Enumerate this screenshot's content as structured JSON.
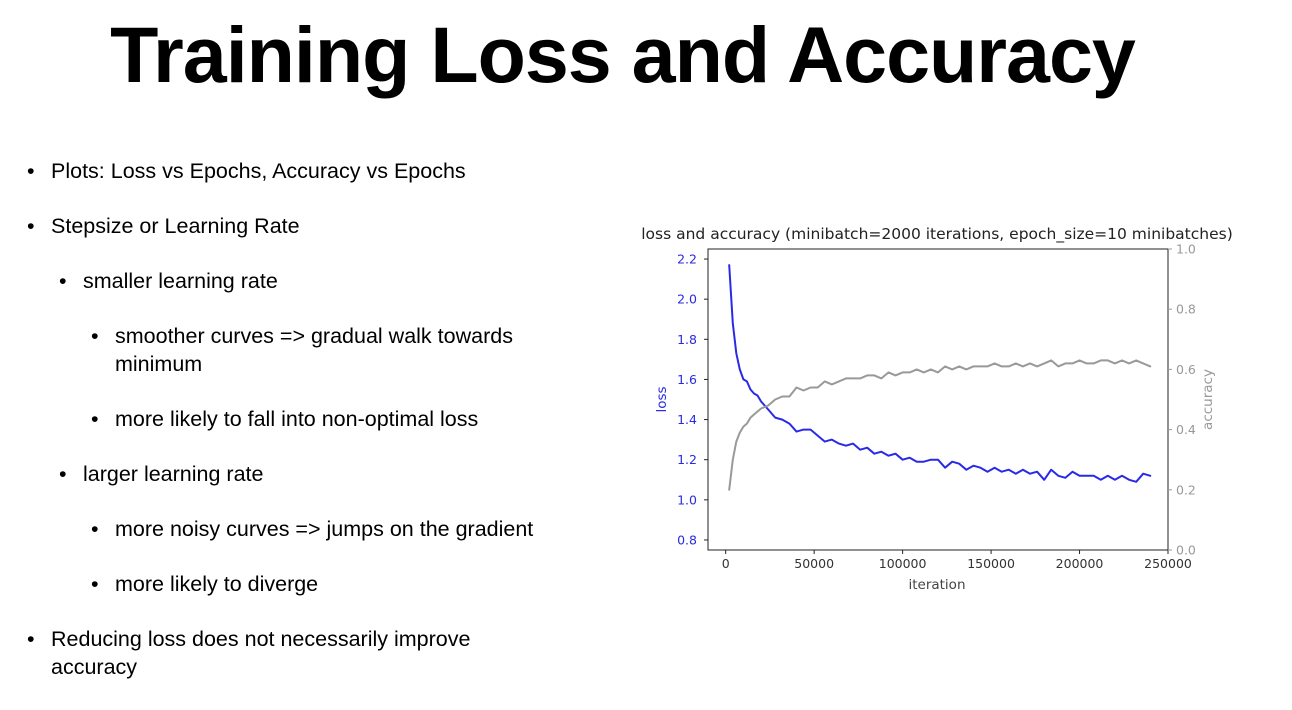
{
  "slide": {
    "title": "Training Loss and Accuracy"
  },
  "bullets": [
    {
      "level": 1,
      "lines": [
        "Plots: Loss vs Epochs, Accuracy vs Epochs"
      ]
    },
    {
      "level": 1,
      "lines": [
        "Stepsize or Learning Rate"
      ]
    },
    {
      "level": 2,
      "lines": [
        "smaller learning rate"
      ]
    },
    {
      "level": 3,
      "lines": [
        "smoother curves => gradual walk towards",
        "minimum"
      ]
    },
    {
      "level": 3,
      "lines": [
        "more likely to fall into non-optimal loss"
      ]
    },
    {
      "level": 2,
      "lines": [
        "larger learning rate"
      ]
    },
    {
      "level": 3,
      "lines": [
        "more noisy curves => jumps on the gradient"
      ]
    },
    {
      "level": 3,
      "lines": [
        "more likely to diverge"
      ]
    },
    {
      "level": 1,
      "lines": [
        "Reducing loss does not necessarily improve",
        "accuracy"
      ]
    }
  ],
  "bullet_glyph": "•",
  "chart_data": {
    "type": "line",
    "title": "loss and accuracy (minibatch=2000 iterations, epoch_size=10 minibatches)",
    "xlabel": "iteration",
    "ylabel_left": "loss",
    "ylabel_right": "accuracy",
    "xlim": [
      -10000,
      250000
    ],
    "ylim_left": [
      0.75,
      2.25
    ],
    "ylim_right": [
      0.0,
      1.0
    ],
    "x_ticks": [
      0,
      50000,
      100000,
      150000,
      200000,
      250000
    ],
    "x_tick_labels": [
      "0",
      "50000",
      "100000",
      "150000",
      "200000",
      "250000"
    ],
    "y_left_ticks": [
      0.8,
      1.0,
      1.2,
      1.4,
      1.6,
      1.8,
      2.0,
      2.2
    ],
    "y_left_tick_labels": [
      "0.8",
      "1.0",
      "1.2",
      "1.4",
      "1.6",
      "1.8",
      "2.0",
      "2.2"
    ],
    "y_right_ticks": [
      0.0,
      0.2,
      0.4,
      0.6,
      0.8,
      1.0
    ],
    "y_right_tick_labels": [
      "0.0",
      "0.2",
      "0.4",
      "0.6",
      "0.8",
      "1.0"
    ],
    "grid": false,
    "colors": {
      "loss": "#2a2ae6",
      "accuracy": "#999999",
      "left_axis_text": "#2a2ae6",
      "right_axis_text": "#999999"
    },
    "series": [
      {
        "name": "loss",
        "axis": "left",
        "x": [
          2000,
          4000,
          6000,
          8000,
          10000,
          12000,
          14000,
          16000,
          18000,
          20000,
          24000,
          28000,
          32000,
          36000,
          40000,
          44000,
          48000,
          52000,
          56000,
          60000,
          64000,
          68000,
          72000,
          76000,
          80000,
          84000,
          88000,
          92000,
          96000,
          100000,
          104000,
          108000,
          112000,
          116000,
          120000,
          124000,
          128000,
          132000,
          136000,
          140000,
          144000,
          148000,
          152000,
          156000,
          160000,
          164000,
          168000,
          172000,
          176000,
          180000,
          184000,
          188000,
          192000,
          196000,
          200000,
          204000,
          208000,
          212000,
          216000,
          220000,
          224000,
          228000,
          232000,
          236000,
          240000
        ],
        "values": [
          2.17,
          1.88,
          1.73,
          1.65,
          1.6,
          1.59,
          1.55,
          1.53,
          1.52,
          1.49,
          1.45,
          1.41,
          1.4,
          1.38,
          1.34,
          1.35,
          1.35,
          1.32,
          1.29,
          1.3,
          1.28,
          1.27,
          1.28,
          1.25,
          1.26,
          1.23,
          1.24,
          1.22,
          1.23,
          1.2,
          1.21,
          1.19,
          1.19,
          1.2,
          1.2,
          1.16,
          1.19,
          1.18,
          1.15,
          1.17,
          1.16,
          1.14,
          1.16,
          1.14,
          1.15,
          1.13,
          1.15,
          1.13,
          1.14,
          1.1,
          1.15,
          1.12,
          1.11,
          1.14,
          1.12,
          1.12,
          1.12,
          1.1,
          1.12,
          1.1,
          1.12,
          1.1,
          1.09,
          1.13,
          1.12
        ]
      },
      {
        "name": "accuracy",
        "axis": "right",
        "x": [
          2000,
          4000,
          6000,
          8000,
          10000,
          12000,
          14000,
          16000,
          18000,
          20000,
          24000,
          28000,
          32000,
          36000,
          40000,
          44000,
          48000,
          52000,
          56000,
          60000,
          64000,
          68000,
          72000,
          76000,
          80000,
          84000,
          88000,
          92000,
          96000,
          100000,
          104000,
          108000,
          112000,
          116000,
          120000,
          124000,
          128000,
          132000,
          136000,
          140000,
          144000,
          148000,
          152000,
          156000,
          160000,
          164000,
          168000,
          172000,
          176000,
          180000,
          184000,
          188000,
          192000,
          196000,
          200000,
          204000,
          208000,
          212000,
          216000,
          220000,
          224000,
          228000,
          232000,
          236000,
          240000
        ],
        "values": [
          0.2,
          0.3,
          0.36,
          0.39,
          0.41,
          0.42,
          0.44,
          0.45,
          0.46,
          0.47,
          0.48,
          0.5,
          0.51,
          0.51,
          0.54,
          0.53,
          0.54,
          0.54,
          0.56,
          0.55,
          0.56,
          0.57,
          0.57,
          0.57,
          0.58,
          0.58,
          0.57,
          0.59,
          0.58,
          0.59,
          0.59,
          0.6,
          0.59,
          0.6,
          0.59,
          0.61,
          0.6,
          0.61,
          0.6,
          0.61,
          0.61,
          0.61,
          0.62,
          0.61,
          0.61,
          0.62,
          0.61,
          0.62,
          0.61,
          0.62,
          0.63,
          0.61,
          0.62,
          0.62,
          0.63,
          0.62,
          0.62,
          0.63,
          0.63,
          0.62,
          0.63,
          0.62,
          0.63,
          0.62,
          0.61
        ]
      }
    ]
  }
}
